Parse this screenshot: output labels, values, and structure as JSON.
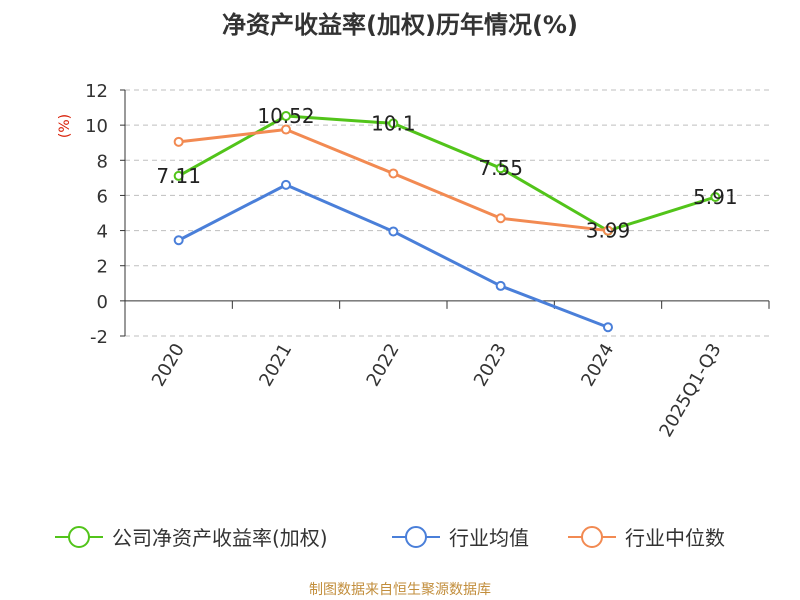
{
  "source_text": "制图数据来自恒生聚源数据库",
  "colors": {
    "series": [
      "#52c41a",
      "#4a7fd9",
      "#f28a52"
    ],
    "grid": "#bfbfbf",
    "axis": "#333333",
    "unit": "#d81e06",
    "source": "#c28e3c"
  },
  "chart_data": {
    "type": "line",
    "title": "净资产收益率(加权)历年情况(%)",
    "ylabel": "(%)",
    "xlabel": "",
    "categories": [
      "2020",
      "2021",
      "2022",
      "2023",
      "2024",
      "2025Q1-Q3"
    ],
    "ylim": [
      -2,
      12
    ],
    "yticks": [
      -2,
      0,
      2,
      4,
      6,
      8,
      10,
      12
    ],
    "grid": true,
    "legend_position": "bottom",
    "series": [
      {
        "name": "公司净资产收益率(加权)",
        "values": [
          7.11,
          10.52,
          10.1,
          7.55,
          3.99,
          5.91
        ],
        "data_labels": [
          "7.11",
          "10.52",
          "10.1",
          "7.55",
          "3.99",
          "5.91"
        ]
      },
      {
        "name": "行业均值",
        "values": [
          3.45,
          6.6,
          3.95,
          0.85,
          -1.5,
          null
        ]
      },
      {
        "name": "行业中位数",
        "values": [
          9.05,
          9.75,
          7.25,
          4.7,
          4.0,
          null
        ]
      }
    ]
  }
}
